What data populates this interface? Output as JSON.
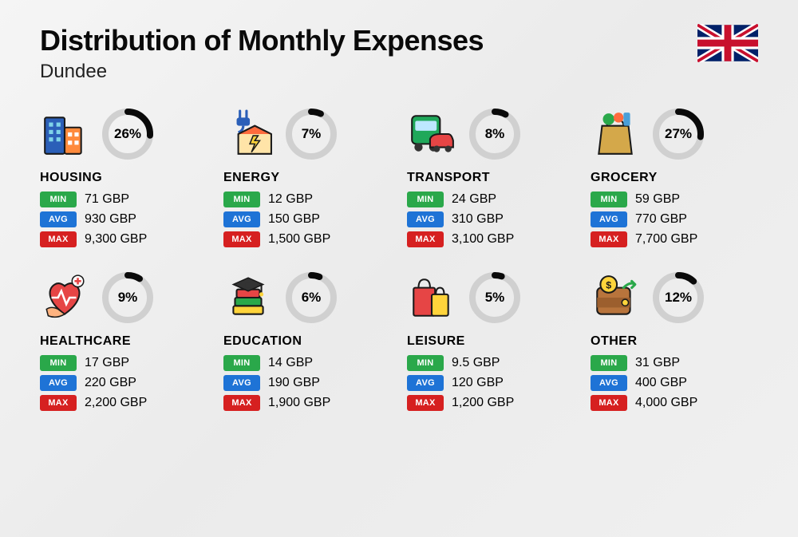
{
  "title": "Distribution of Monthly Expenses",
  "subtitle": "Dundee",
  "currency": "GBP",
  "badge_labels": {
    "min": "MIN",
    "avg": "AVG",
    "max": "MAX"
  },
  "badge_colors": {
    "min": "#2aa84a",
    "avg": "#1e73d6",
    "max": "#d62020"
  },
  "donut": {
    "track_color": "#d0d0d0",
    "arc_color": "#0a0a0a",
    "stroke_width": 8,
    "radius": 28
  },
  "categories": [
    {
      "key": "housing",
      "name": "HOUSING",
      "percent": 26,
      "min": "71 GBP",
      "avg": "930 GBP",
      "max": "9,300 GBP"
    },
    {
      "key": "energy",
      "name": "ENERGY",
      "percent": 7,
      "min": "12 GBP",
      "avg": "150 GBP",
      "max": "1,500 GBP"
    },
    {
      "key": "transport",
      "name": "TRANSPORT",
      "percent": 8,
      "min": "24 GBP",
      "avg": "310 GBP",
      "max": "3,100 GBP"
    },
    {
      "key": "grocery",
      "name": "GROCERY",
      "percent": 27,
      "min": "59 GBP",
      "avg": "770 GBP",
      "max": "7,700 GBP"
    },
    {
      "key": "healthcare",
      "name": "HEALTHCARE",
      "percent": 9,
      "min": "17 GBP",
      "avg": "220 GBP",
      "max": "2,200 GBP"
    },
    {
      "key": "education",
      "name": "EDUCATION",
      "percent": 6,
      "min": "14 GBP",
      "avg": "190 GBP",
      "max": "1,900 GBP"
    },
    {
      "key": "leisure",
      "name": "LEISURE",
      "percent": 5,
      "min": "9.5 GBP",
      "avg": "120 GBP",
      "max": "1,200 GBP"
    },
    {
      "key": "other",
      "name": "OTHER",
      "percent": 12,
      "min": "31 GBP",
      "avg": "400 GBP",
      "max": "4,000 GBP"
    }
  ],
  "icon_colors": {
    "housing": {
      "b1": "#2b5fb8",
      "b2": "#ff8a3c",
      "win": "#7fd4e8"
    },
    "energy": {
      "roof": "#ff6b3d",
      "wall": "#ffe4a8",
      "plug": "#2b5fb8",
      "bolt": "#ffd43b"
    },
    "transport": {
      "bus": "#1fa85a",
      "car": "#e64545",
      "wheel": "#333"
    },
    "grocery": {
      "bag": "#d4a84a",
      "veg1": "#2aa84a",
      "veg2": "#ff6b3d",
      "bottle": "#4a9fd8"
    },
    "healthcare": {
      "heart": "#e64545",
      "hand": "#ffb380",
      "plus": "#e64545"
    },
    "education": {
      "cap": "#333",
      "b1": "#e64545",
      "b2": "#2aa84a",
      "b3": "#ffd43b"
    },
    "leisure": {
      "bag1": "#e64545",
      "bag2": "#ffd43b"
    },
    "other": {
      "wallet": "#b8743c",
      "coin": "#ffd43b",
      "arrow": "#2aa84a"
    }
  }
}
